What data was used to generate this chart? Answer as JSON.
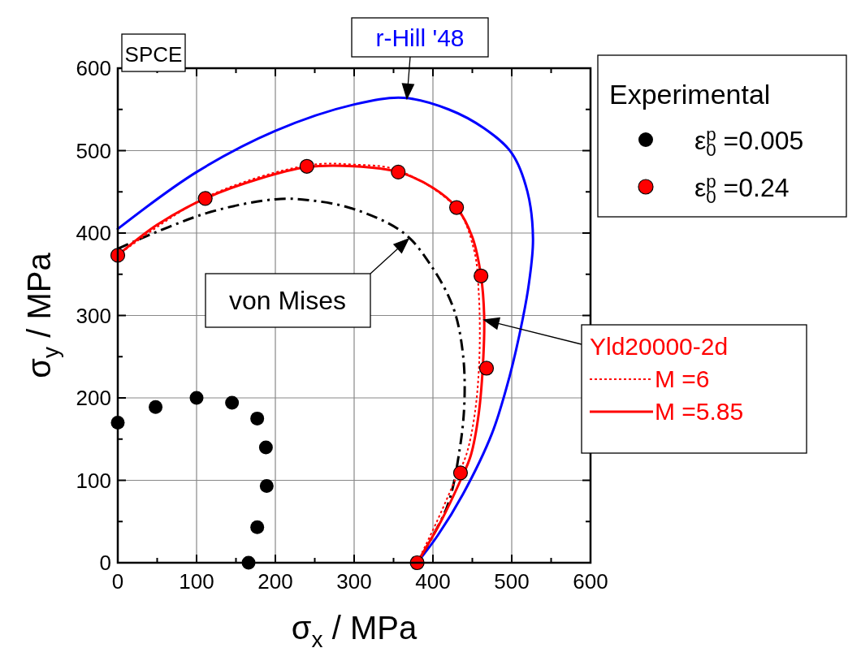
{
  "chart_data": {
    "type": "line",
    "xlabel": "σ$_{x}$ / MPa",
    "ylabel": "σ$_{y}$ / MPa",
    "legend_title": "Experimental",
    "xlim": [
      0,
      600
    ],
    "ylim": [
      0,
      600
    ],
    "xticks": [
      0,
      {
        "value": 50,
        "label": null
      },
      100,
      {
        "value": 150,
        "label": null
      },
      200,
      {
        "value": 250,
        "label": null
      },
      300,
      {
        "value": 350,
        "label": null
      },
      400,
      {
        "value": 450,
        "label": null
      },
      500,
      {
        "value": 550,
        "label": null
      },
      600
    ],
    "yticks": [
      0,
      {
        "value": 50,
        "label": null
      },
      100,
      {
        "value": 150,
        "label": null
      },
      200,
      {
        "value": 250,
        "label": null
      },
      300,
      {
        "value": 350,
        "label": null
      },
      400,
      {
        "value": 450,
        "label": null
      },
      500,
      {
        "value": 550,
        "label": null
      },
      600
    ],
    "grid": true,
    "legend": "right",
    "marker": "none",
    "annotations": [
      "SPCE",
      {
        "text": "r-Hill '48",
        "x": 367,
        "y": 563
      },
      "von Mises",
      "Yld20000-2d"
    ],
    "series": [
      {
        "color": "#0000ff",
        "line_style": "solid",
        "x": [
          0,
          100,
          200,
          300,
          363,
          420,
          465,
          500,
          520,
          527,
          522,
          514,
          497,
          475,
          438,
          406,
          380
        ],
        "values": [
          405,
          474,
          524,
          556,
          564,
          550,
          527,
          497,
          450,
          393,
          340,
          296,
          225,
          157,
          83,
          33,
          0
        ]
      },
      {
        "color": "#000000",
        "line_style": "dashed",
        "x": [
          0,
          112,
          200,
          242,
          300,
          363,
          398,
          426,
          438,
          440,
          434,
          418,
          380
        ],
        "values": [
          381,
          424,
          441,
          440,
          429,
          400,
          360,
          309,
          254,
          196,
          138,
          68,
          0
        ]
      },
      {
        "name": "M =6",
        "color": "#ff0000",
        "line_style": "dotted",
        "x": [
          0,
          111,
          240,
          300,
          356,
          430,
          452,
          458,
          459,
          453,
          442,
          428,
          405,
          380
        ],
        "values": [
          373,
          443,
          482,
          483,
          476,
          430,
          380,
          330,
          250,
          180,
          130,
          100,
          50,
          0
        ]
      },
      {
        "name": "M =5.85",
        "color": "#ff0000",
        "line_style": "solid",
        "x": [
          0,
          50,
          111,
          180,
          240,
          300,
          356,
          400,
          430,
          450,
          461,
          465,
          464,
          458,
          448,
          435,
          410,
          380
        ],
        "values": [
          373,
          410,
          442,
          466,
          480,
          481,
          474,
          455,
          431,
          395,
          348,
          300,
          250,
          180,
          130,
          100,
          50,
          0
        ]
      },
      {
        "type": "scatter",
        "name": "ε$_{0}$$^{p}$ =0.005",
        "color": "#000000",
        "marker": "circle",
        "x": [
          0,
          48,
          100,
          145,
          177,
          188,
          189,
          177,
          166
        ],
        "values": [
          170,
          189,
          200,
          194,
          175,
          140,
          93,
          43,
          0
        ]
      },
      {
        "type": "scatter",
        "name": "ε$_{0}$$^{p}$ =0.24",
        "color": "#ff0000",
        "marker": "circle",
        "x": [
          0,
          111,
          240,
          356,
          430,
          461,
          468,
          435,
          380
        ],
        "values": [
          373,
          442,
          481,
          474,
          431,
          348,
          236,
          109,
          0
        ]
      }
    ]
  }
}
